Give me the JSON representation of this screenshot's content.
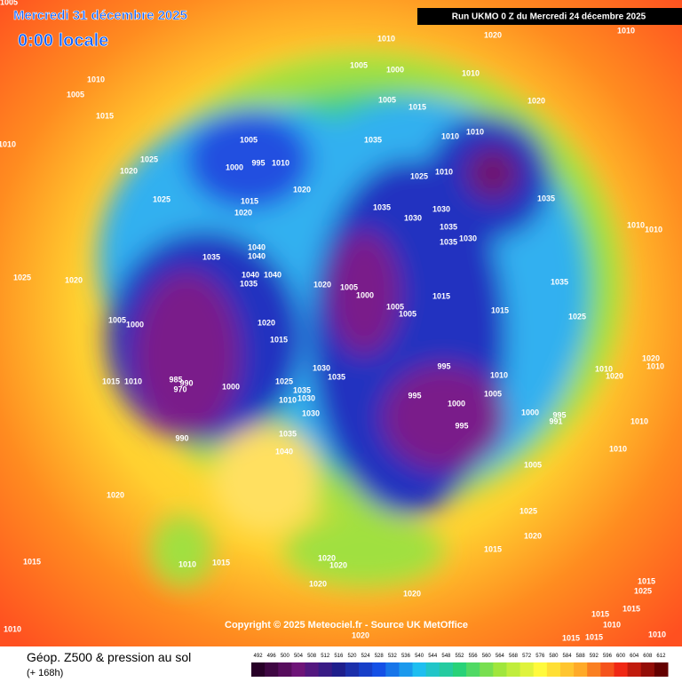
{
  "header": {
    "title": "Mercredi 31 décembre 2025",
    "subtitle": "0:00 locale",
    "run": "Run UKMO 0 Z du Mercredi 24 décembre 2025"
  },
  "copyright": "Copyright © 2025 Meteociel.fr - Source UK MetOffice",
  "footer": {
    "title": "Géop. Z500 & pression au sol",
    "lead": "(+ 168h)"
  },
  "scale": [
    492,
    496,
    500,
    504,
    508,
    512,
    516,
    520,
    524,
    528,
    532,
    536,
    540,
    544,
    548,
    552,
    556,
    560,
    564,
    568,
    572,
    576,
    580,
    584,
    588,
    592,
    596,
    600,
    604,
    608,
    612
  ],
  "map_labels": [
    "1005",
    "1010",
    "1020",
    "1010",
    "1010",
    "1005",
    "1015",
    "1005",
    "1000",
    "1010",
    "1005",
    "1015",
    "1020",
    "1010",
    "1005",
    "1000",
    "995",
    "1010",
    "1035",
    "1010",
    "1010",
    "1025",
    "1020",
    "1025",
    "1010",
    "1020",
    "1025",
    "1015",
    "1020",
    "1035",
    "1030",
    "1030",
    "1035",
    "1035",
    "1030",
    "1035",
    "1040",
    "1040",
    "1035",
    "1025",
    "1020",
    "1040",
    "1040",
    "1035",
    "1020",
    "1005",
    "1000",
    "1015",
    "1035",
    "1010",
    "1010",
    "1005",
    "1005",
    "1015",
    "1005",
    "1000",
    "1020",
    "1015",
    "1025",
    "1020",
    "1010",
    "1010",
    "1020",
    "1030",
    "1035",
    "995",
    "1015",
    "1010",
    "985",
    "990",
    "970",
    "1000",
    "1025",
    "1035",
    "1010",
    "1030",
    "995",
    "1005",
    "1010",
    "1000",
    "1030",
    "1000",
    "995",
    "991",
    "1010",
    "995",
    "990",
    "1035",
    "1040",
    "1010",
    "1005",
    "1020",
    "1025",
    "1020",
    "1015",
    "1015",
    "1010",
    "1015",
    "1020",
    "1020",
    "1020",
    "1020",
    "1015",
    "1025",
    "1015",
    "1015",
    "1010",
    "1010",
    "1020",
    "1015",
    "1015",
    "1010"
  ]
}
